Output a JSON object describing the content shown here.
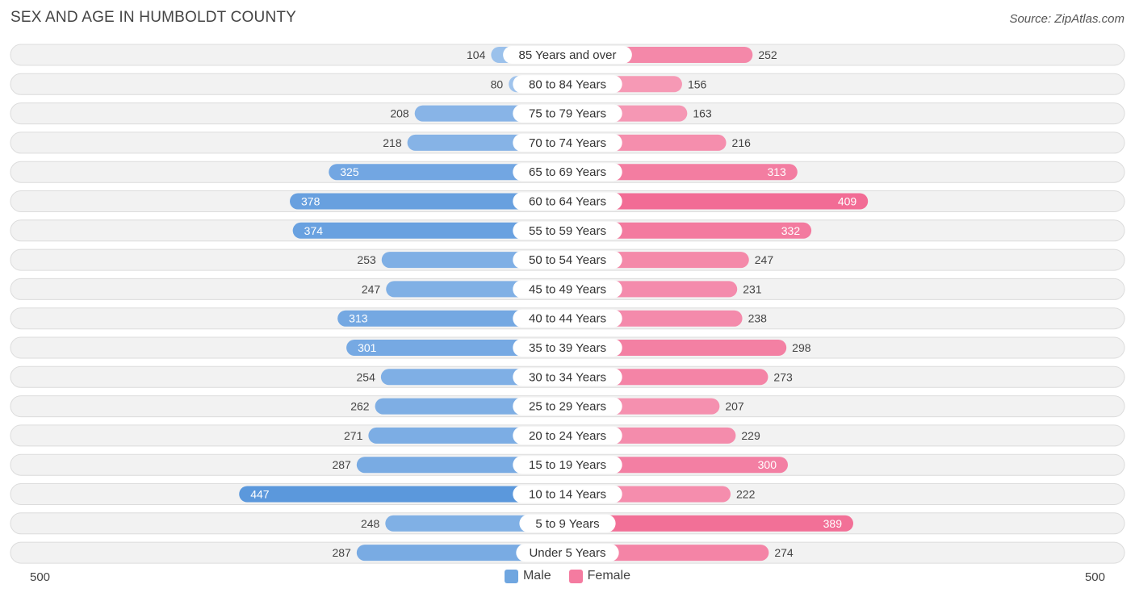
{
  "header": {
    "title": "SEX AND AGE IN HUMBOLDT COUNTY",
    "source": "Source: ZipAtlas.com"
  },
  "colors": {
    "male": "#6fa6e0",
    "female": "#f47ba0",
    "row_bg": "#f1f1f1"
  },
  "chart_data": {
    "type": "bar",
    "orientation": "horizontal-butterfly",
    "title": "SEX AND AGE IN HUMBOLDT COUNTY",
    "categories": [
      "85 Years and over",
      "80 to 84 Years",
      "75 to 79 Years",
      "70 to 74 Years",
      "65 to 69 Years",
      "60 to 64 Years",
      "55 to 59 Years",
      "50 to 54 Years",
      "45 to 49 Years",
      "40 to 44 Years",
      "35 to 39 Years",
      "30 to 34 Years",
      "25 to 29 Years",
      "20 to 24 Years",
      "15 to 19 Years",
      "10 to 14 Years",
      "5 to 9 Years",
      "Under 5 Years"
    ],
    "series": [
      {
        "name": "Male",
        "values": [
          104,
          80,
          208,
          218,
          325,
          378,
          374,
          253,
          247,
          313,
          301,
          254,
          262,
          271,
          287,
          447,
          248,
          287
        ]
      },
      {
        "name": "Female",
        "values": [
          252,
          156,
          163,
          216,
          313,
          409,
          332,
          247,
          231,
          238,
          298,
          273,
          207,
          229,
          300,
          222,
          389,
          274
        ]
      }
    ],
    "xlim": [
      -500,
      500
    ],
    "axis_left_label": "500",
    "axis_right_label": "500",
    "legend_position": "bottom-center"
  }
}
